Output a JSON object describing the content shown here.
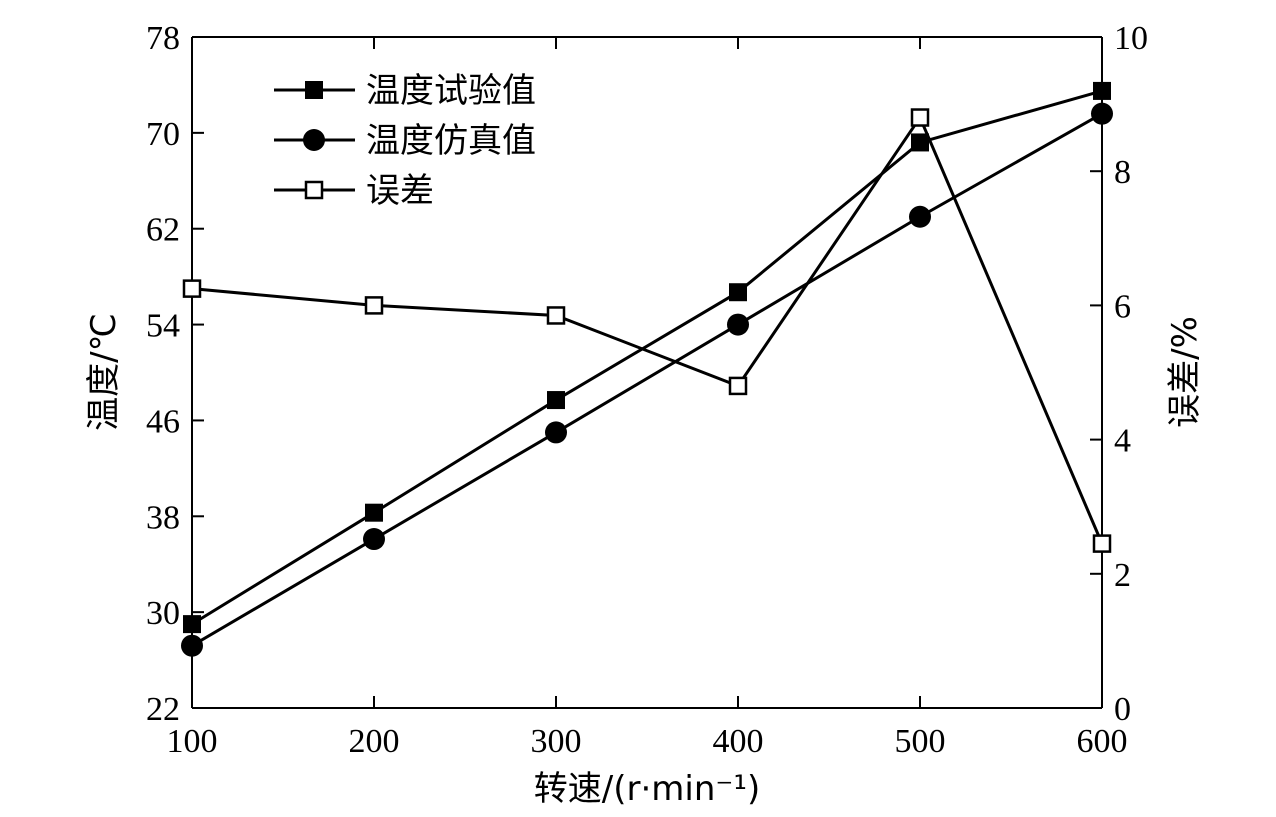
{
  "chart_data": {
    "type": "line",
    "title": "",
    "xlabel": "转速/(r·min⁻¹)",
    "ylabel_left": "温度/℃",
    "ylabel_right": "误差/%",
    "x": [
      100,
      200,
      300,
      400,
      500,
      600
    ],
    "x_ticks": [
      "100",
      "200",
      "300",
      "400",
      "500",
      "600"
    ],
    "xlim": [
      100,
      600
    ],
    "ylim_left": [
      22,
      78
    ],
    "y_ticks_left": [
      "22",
      "30",
      "38",
      "46",
      "54",
      "62",
      "70",
      "78"
    ],
    "ylim_right": [
      0,
      10
    ],
    "y_ticks_right": [
      "0",
      "2",
      "4",
      "6",
      "8",
      "10"
    ],
    "grid": false,
    "legend_position": "top-left",
    "series": [
      {
        "name": "温度试验值",
        "axis": "left",
        "marker": "filled-square",
        "values": [
          29.0,
          38.3,
          47.7,
          56.7,
          69.2,
          73.5
        ]
      },
      {
        "name": "温度仿真值",
        "axis": "left",
        "marker": "filled-circle",
        "values": [
          27.2,
          36.1,
          45.0,
          54.0,
          63.0,
          71.6
        ]
      },
      {
        "name": "误差",
        "axis": "right",
        "marker": "open-square",
        "values": [
          6.25,
          6.0,
          5.85,
          4.8,
          8.8,
          2.45
        ]
      }
    ]
  }
}
